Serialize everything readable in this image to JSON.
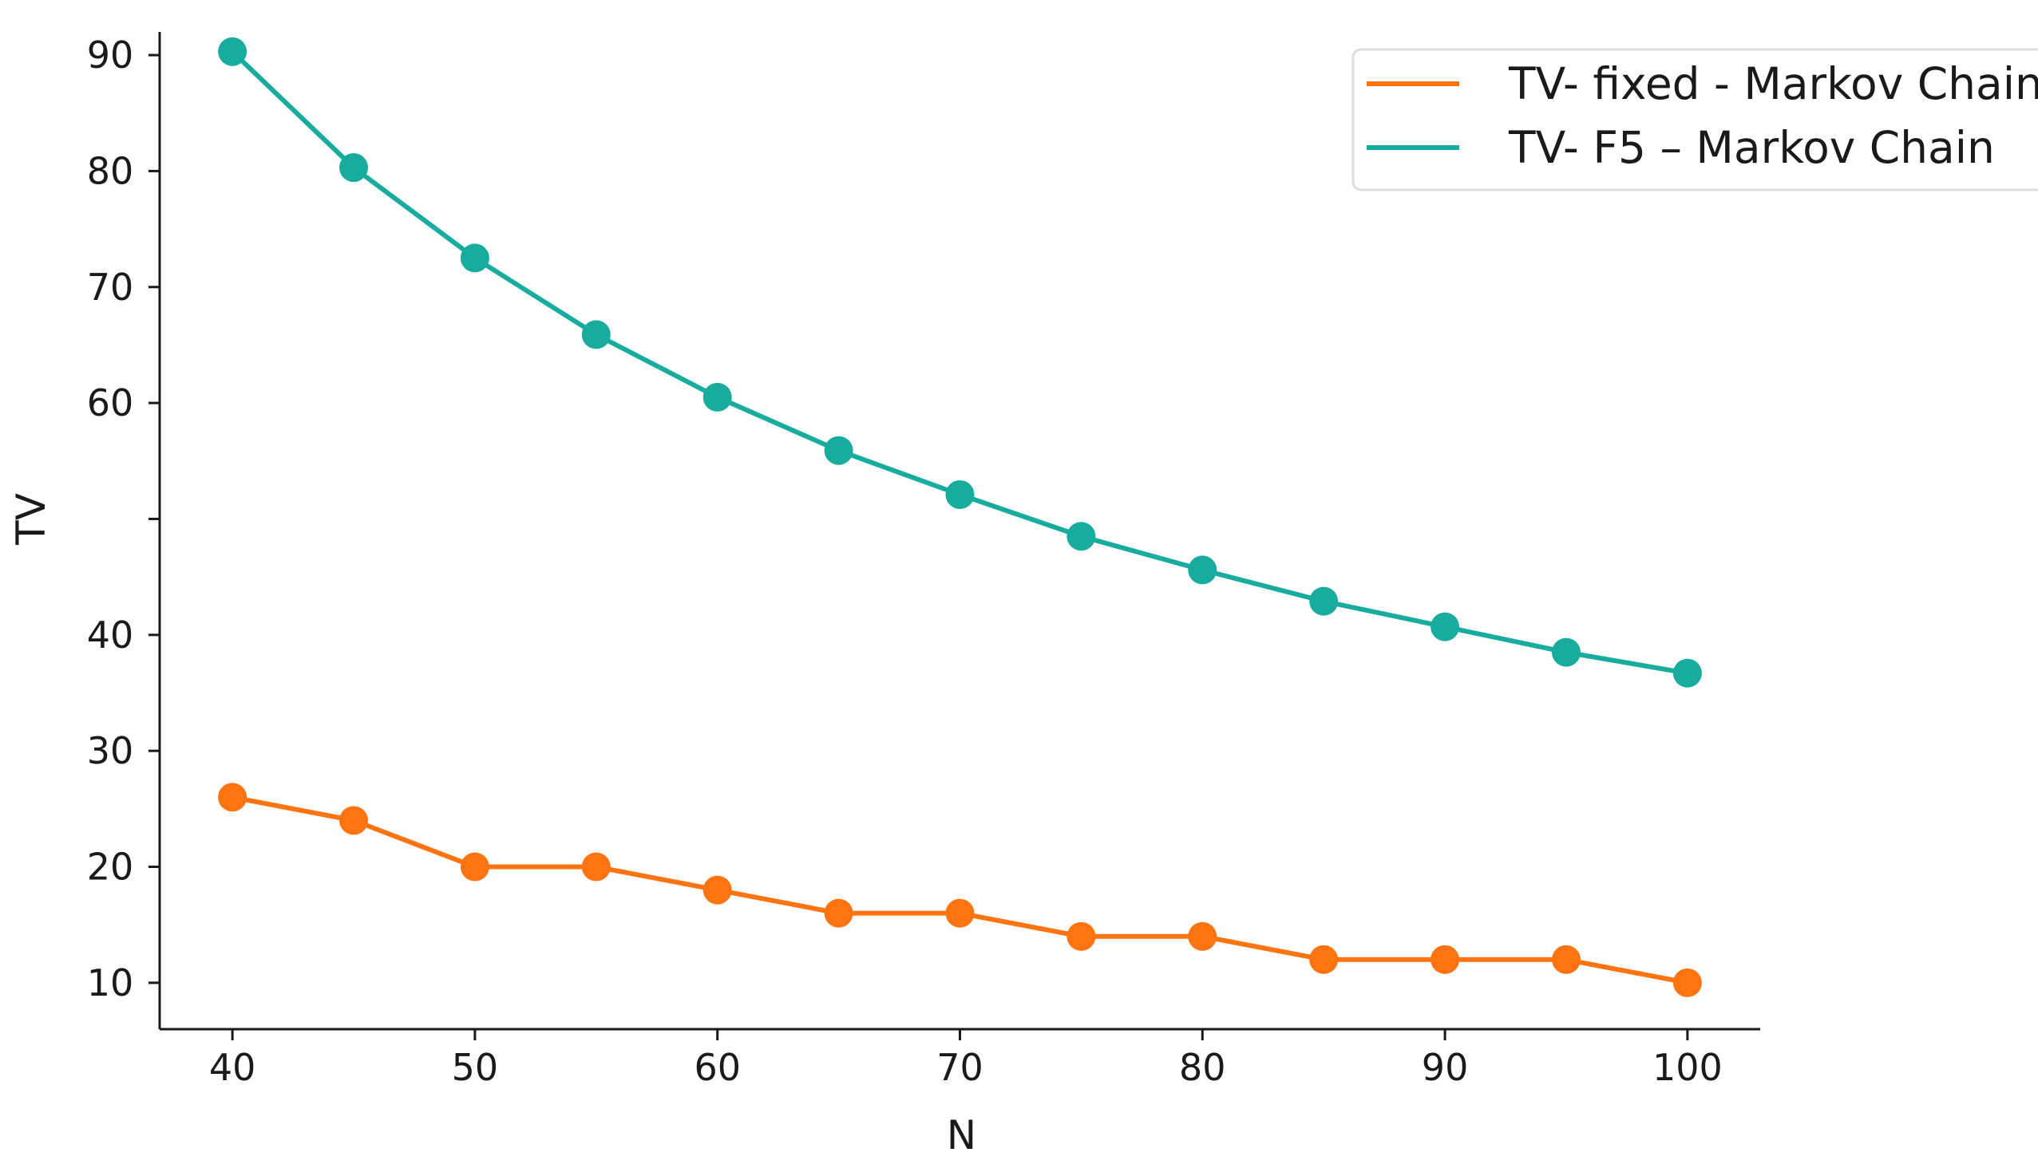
{
  "chart_data": {
    "type": "line",
    "title": "",
    "xlabel": "N",
    "ylabel": "TV",
    "xlim": [
      37,
      103
    ],
    "ylim": [
      6,
      92
    ],
    "grid": false,
    "legend_position": "top-right",
    "x": [
      40,
      45,
      50,
      55,
      60,
      65,
      70,
      75,
      80,
      85,
      90,
      95,
      100
    ],
    "x_ticks": [
      {
        "value": 40,
        "label": "40"
      },
      {
        "value": 50,
        "label": "50"
      },
      {
        "value": 60,
        "label": "60"
      },
      {
        "value": 70,
        "label": "70"
      },
      {
        "value": 80,
        "label": "80"
      },
      {
        "value": 90,
        "label": "90"
      },
      {
        "value": 100,
        "label": "100"
      }
    ],
    "y_ticks": [
      {
        "value": 10,
        "label": "10"
      },
      {
        "value": 20,
        "label": "20"
      },
      {
        "value": 30,
        "label": "30"
      },
      {
        "value": 40,
        "label": "40"
      },
      {
        "value": 50,
        "label": ""
      },
      {
        "value": 60,
        "label": "60"
      },
      {
        "value": 70,
        "label": "70"
      },
      {
        "value": 80,
        "label": "80"
      },
      {
        "value": 90,
        "label": "90"
      }
    ],
    "series": [
      {
        "name": "TV- fixed - Markov Chain",
        "color": "#ff7410",
        "values": [
          26,
          24,
          20,
          20,
          18,
          16,
          16,
          14,
          14,
          12,
          12,
          12,
          10
        ]
      },
      {
        "name": "TV- F5 – Markov Chain",
        "color": "#17ac9d",
        "values": [
          90.3,
          80.3,
          72.5,
          65.9,
          60.5,
          55.9,
          52.1,
          48.5,
          45.6,
          42.9,
          40.7,
          38.5,
          36.7
        ]
      }
    ]
  }
}
